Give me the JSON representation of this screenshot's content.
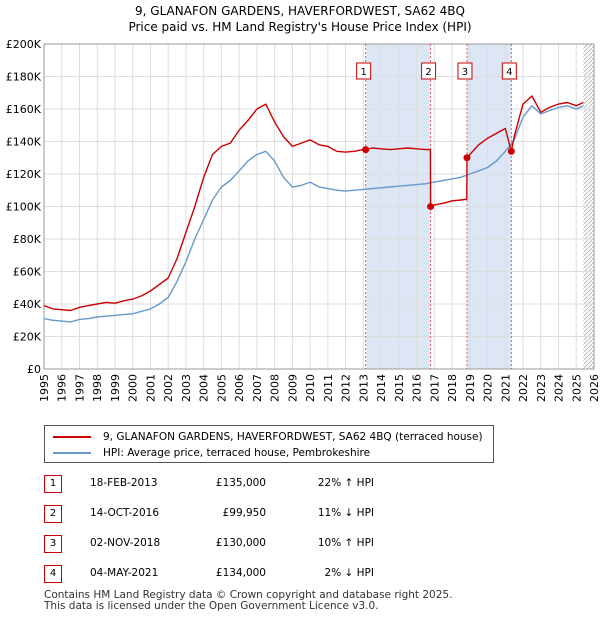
{
  "title_line1": "9, GLANAFON GARDENS, HAVERFORDWEST, SA62 4BQ",
  "title_line2": "Price paid vs. HM Land Registry's House Price Index (HPI)",
  "colors": {
    "price_paid": "#cc0000",
    "hpi": "#6699cc",
    "shade": "#dde6f5",
    "grid": "#dddddd"
  },
  "legend": {
    "price_paid_label": "9, GLANAFON GARDENS, HAVERFORDWEST, SA62 4BQ (terraced house)",
    "hpi_label": "HPI: Average price, terraced house, Pembrokeshire"
  },
  "transactions": [
    {
      "num": "1",
      "date": "18-FEB-2013",
      "price": "£135,000",
      "hpi": "22% ↑ HPI"
    },
    {
      "num": "2",
      "date": "14-OCT-2016",
      "price": "£99,950",
      "hpi": "11% ↓ HPI"
    },
    {
      "num": "3",
      "date": "02-NOV-2018",
      "price": "£130,000",
      "hpi": "10% ↑ HPI"
    },
    {
      "num": "4",
      "date": "04-MAY-2021",
      "price": "£134,000",
      "hpi": "2% ↓ HPI"
    }
  ],
  "footer_line1": "Contains HM Land Registry data © Crown copyright and database right 2025.",
  "footer_line2": "This data is licensed under the Open Government Licence v3.0.",
  "chart_data": {
    "type": "line",
    "title": "9, GLANAFON GARDENS, HAVERFORDWEST, SA62 4BQ — Price paid vs. HM Land Registry's House Price Index (HPI)",
    "xlim": [
      1995,
      2026
    ],
    "ylim": [
      0,
      200000
    ],
    "x_ticks": [
      1995,
      1996,
      1997,
      1998,
      1999,
      2000,
      2001,
      2002,
      2003,
      2004,
      2005,
      2006,
      2007,
      2008,
      2009,
      2010,
      2011,
      2012,
      2013,
      2014,
      2015,
      2016,
      2017,
      2018,
      2019,
      2020,
      2021,
      2022,
      2023,
      2024,
      2025,
      2026
    ],
    "y_ticks": [
      0,
      20000,
      40000,
      60000,
      80000,
      100000,
      120000,
      140000,
      160000,
      180000,
      200000
    ],
    "y_tick_labels": [
      "£0",
      "£20K",
      "£40K",
      "£60K",
      "£80K",
      "£100K",
      "£120K",
      "£140K",
      "£160K",
      "£180K",
      "£200K"
    ],
    "sale_markers": [
      {
        "label": "1",
        "x": 2013.13,
        "y": 135000
      },
      {
        "label": "2",
        "x": 2016.79,
        "y": 99950
      },
      {
        "label": "3",
        "x": 2018.84,
        "y": 130000
      },
      {
        "label": "4",
        "x": 2021.34,
        "y": 134000
      }
    ],
    "shaded_ranges": [
      [
        2013.13,
        2016.79
      ],
      [
        2018.84,
        2021.34
      ]
    ],
    "series": [
      {
        "name": "9, GLANAFON GARDENS, HAVERFORDWEST, SA62 4BQ (terraced house)",
        "x": [
          1995,
          1995.5,
          1996,
          1996.5,
          1997,
          1997.5,
          1998,
          1998.5,
          1999,
          1999.5,
          2000,
          2000.5,
          2001,
          2001.5,
          2002,
          2002.5,
          2003,
          2003.5,
          2004,
          2004.5,
          2005,
          2005.5,
          2006,
          2006.5,
          2007,
          2007.5,
          2008,
          2008.5,
          2009,
          2009.5,
          2010,
          2010.5,
          2011,
          2011.5,
          2012,
          2012.5,
          2013,
          2013.13,
          2013.5,
          2014,
          2014.5,
          2015,
          2015.5,
          2016,
          2016.5,
          2016.78,
          2016.79,
          2017,
          2017.5,
          2018,
          2018.5,
          2018.83,
          2018.84,
          2019,
          2019.5,
          2020,
          2020.5,
          2021,
          2021.34,
          2021.5,
          2022,
          2022.5,
          2023,
          2023.5,
          2024,
          2024.5,
          2025,
          2025.4
        ],
        "values": [
          39000,
          37000,
          36500,
          36000,
          38000,
          39000,
          40000,
          41000,
          40500,
          42000,
          43000,
          45000,
          48000,
          52000,
          56000,
          68000,
          84000,
          100000,
          118000,
          132000,
          137000,
          139000,
          147000,
          153000,
          160000,
          163000,
          152000,
          143000,
          137000,
          139000,
          141000,
          138000,
          137000,
          134000,
          133500,
          134000,
          135000,
          135000,
          136000,
          135500,
          135000,
          135500,
          136000,
          135500,
          135000,
          135000,
          99950,
          101000,
          102000,
          103500,
          104000,
          104500,
          130000,
          132000,
          138000,
          142000,
          145000,
          148000,
          134000,
          143000,
          163000,
          168000,
          158000,
          161000,
          163000,
          164000,
          162000,
          164000
        ]
      },
      {
        "name": "HPI: Average price, terraced house, Pembrokeshire",
        "x": [
          1995,
          1995.5,
          1996,
          1996.5,
          1997,
          1997.5,
          1998,
          1998.5,
          1999,
          1999.5,
          2000,
          2000.5,
          2001,
          2001.5,
          2002,
          2002.5,
          2003,
          2003.5,
          2004,
          2004.5,
          2005,
          2005.5,
          2006,
          2006.5,
          2007,
          2007.5,
          2008,
          2008.5,
          2009,
          2009.5,
          2010,
          2010.5,
          2011,
          2011.5,
          2012,
          2012.5,
          2013,
          2013.5,
          2014,
          2014.5,
          2015,
          2015.5,
          2016,
          2016.5,
          2017,
          2017.5,
          2018,
          2018.5,
          2019,
          2019.5,
          2020,
          2020.5,
          2021,
          2021.5,
          2022,
          2022.5,
          2023,
          2023.5,
          2024,
          2024.5,
          2025,
          2025.4
        ],
        "values": [
          31000,
          30000,
          29500,
          29000,
          30500,
          31000,
          32000,
          32500,
          33000,
          33500,
          34000,
          35500,
          37000,
          40000,
          44000,
          54000,
          66000,
          80000,
          92000,
          104000,
          112000,
          116000,
          122000,
          128000,
          132000,
          134000,
          128000,
          118000,
          112000,
          113000,
          115000,
          112000,
          111000,
          110000,
          109500,
          110000,
          110500,
          111000,
          111500,
          112000,
          112500,
          113000,
          113500,
          114000,
          115000,
          116000,
          117000,
          118000,
          120000,
          122000,
          124000,
          128000,
          134000,
          141000,
          155000,
          162000,
          157000,
          159000,
          161000,
          162000,
          160000,
          162000
        ]
      }
    ]
  }
}
